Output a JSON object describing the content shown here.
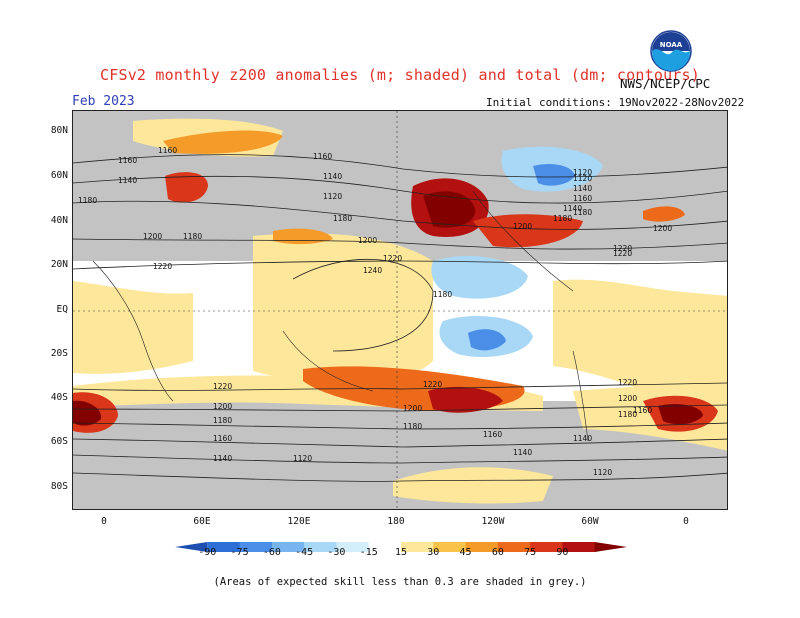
{
  "header": {
    "title": "CFSv2 monthly z200 anomalies (m; shaded) and total (dm; contours)",
    "month": "Feb 2023",
    "agency": "NWS/NCEP/CPC",
    "initial_conditions": "Initial conditions: 19Nov2022-28Nov2022",
    "logo_text": "NOAA"
  },
  "map": {
    "lat_labels": [
      "80N",
      "60N",
      "40N",
      "20N",
      "EQ",
      "20S",
      "40S",
      "60S",
      "80S"
    ],
    "lon_labels": [
      "0",
      "60E",
      "120E",
      "180",
      "120W",
      "60W",
      "0"
    ],
    "contour_labels": [
      "1180",
      "1160",
      "1140",
      "1160",
      "1180",
      "1200",
      "1220",
      "1240",
      "1160",
      "1140",
      "1120",
      "1180",
      "1200",
      "1220",
      "1200",
      "1180",
      "1160",
      "1140",
      "1120",
      "1220",
      "1220",
      "1200",
      "1180",
      "1160",
      "1140",
      "1220",
      "1200",
      "1180",
      "1160",
      "1140",
      "1120",
      "1160",
      "1140",
      "1120",
      "1200",
      "1220",
      "1180",
      "1140",
      "1120",
      "1180",
      "1200",
      "1220",
      "1180"
    ]
  },
  "colorbar": {
    "labels": [
      "-90",
      "-75",
      "-60",
      "-45",
      "-30",
      "-15",
      "15",
      "30",
      "45",
      "60",
      "75",
      "90"
    ],
    "colors": [
      "#1e4fb0",
      "#2d6fd6",
      "#4a8ee8",
      "#78b4f0",
      "#a8d8f6",
      "#d2eefb",
      "#ffffff",
      "#fde79a",
      "#f9c34b",
      "#f59b2a",
      "#ee6a1b",
      "#d9361a",
      "#b3110f",
      "#820000"
    ]
  },
  "footnote": "(Areas of expected skill less than 0.3 are shaded in grey.)"
}
